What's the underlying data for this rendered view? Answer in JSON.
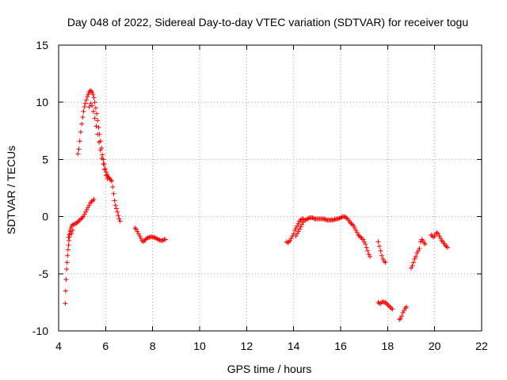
{
  "chart_data": {
    "type": "scatter",
    "title": "Day 048 of 2022, Sidereal Day-to-day VTEC variation (SDTVAR) for receiver togu",
    "xlabel": "GPS time / hours",
    "ylabel": "SDTVAR / TECUs",
    "xlim": [
      4,
      22
    ],
    "ylim": [
      -10,
      15
    ],
    "xticks": [
      4,
      6,
      8,
      10,
      12,
      14,
      16,
      18,
      20,
      22
    ],
    "yticks": [
      -10,
      -5,
      0,
      5,
      10,
      15
    ],
    "xtick_labels": [
      "4",
      "6",
      "8",
      "10",
      "12",
      "14",
      "16",
      "18",
      "20",
      "22"
    ],
    "ytick_labels": [
      "-10",
      "-5",
      "0",
      "5",
      "10",
      "15"
    ],
    "grid": true,
    "marker": "+",
    "color": "#ff0000",
    "series": [
      {
        "name": "SDTVAR",
        "segments": [
          [
            [
              4.28,
              -7.6
            ],
            [
              4.3,
              -6.5
            ],
            [
              4.32,
              -5.5
            ],
            [
              4.34,
              -4.6
            ],
            [
              4.36,
              -4.0
            ],
            [
              4.38,
              -3.4
            ],
            [
              4.4,
              -2.9
            ],
            [
              4.42,
              -2.5
            ],
            [
              4.44,
              -2.1
            ],
            [
              4.46,
              -1.8
            ],
            [
              4.48,
              -1.5
            ],
            [
              4.5,
              -1.2
            ],
            [
              4.52,
              -1.0
            ],
            [
              4.56,
              -0.8
            ],
            [
              4.6,
              -0.7
            ],
            [
              4.65,
              -0.7
            ],
            [
              4.7,
              -0.6
            ],
            [
              4.75,
              -0.6
            ],
            [
              4.8,
              -0.5
            ],
            [
              4.85,
              -0.4
            ],
            [
              4.9,
              -0.3
            ],
            [
              4.95,
              -0.2
            ],
            [
              5.0,
              -0.1
            ],
            [
              5.05,
              0.0
            ],
            [
              5.1,
              0.2
            ],
            [
              5.15,
              0.4
            ],
            [
              5.2,
              0.6
            ],
            [
              5.25,
              0.8
            ],
            [
              5.3,
              1.0
            ],
            [
              5.35,
              1.2
            ],
            [
              5.4,
              1.3
            ],
            [
              5.45,
              1.4
            ],
            [
              5.5,
              1.5
            ]
          ],
          [
            [
              4.42,
              -1.8
            ],
            [
              4.46,
              -1.6
            ],
            [
              4.5,
              -1.3
            ],
            [
              4.55,
              -1.5
            ],
            [
              4.6,
              -1.2
            ]
          ],
          [
            [
              4.82,
              5.5
            ],
            [
              4.86,
              5.9
            ],
            [
              4.9,
              6.6
            ],
            [
              4.94,
              7.4
            ],
            [
              4.98,
              8.1
            ],
            [
              5.02,
              8.7
            ],
            [
              5.06,
              9.2
            ],
            [
              5.1,
              9.6
            ],
            [
              5.14,
              9.9
            ],
            [
              5.18,
              10.2
            ],
            [
              5.22,
              10.5
            ],
            [
              5.26,
              10.7
            ],
            [
              5.3,
              10.9
            ],
            [
              5.34,
              11.0
            ],
            [
              5.38,
              11.0
            ],
            [
              5.42,
              10.9
            ],
            [
              5.46,
              10.7
            ],
            [
              5.5,
              10.4
            ],
            [
              5.54,
              10.0
            ],
            [
              5.58,
              9.5
            ],
            [
              5.62,
              9.0
            ],
            [
              5.66,
              8.4
            ],
            [
              5.7,
              7.8
            ],
            [
              5.74,
              7.2
            ],
            [
              5.78,
              6.6
            ],
            [
              5.82,
              6.0
            ],
            [
              5.86,
              5.4
            ],
            [
              5.9,
              5.0
            ],
            [
              5.94,
              4.6
            ],
            [
              5.98,
              4.2
            ],
            [
              6.02,
              3.9
            ],
            [
              6.06,
              3.7
            ],
            [
              6.1,
              3.5
            ],
            [
              6.14,
              3.4
            ],
            [
              6.18,
              3.3
            ],
            [
              6.22,
              3.2
            ],
            [
              6.26,
              3.1
            ]
          ],
          [
            [
              5.3,
              9.6
            ],
            [
              5.36,
              9.9
            ],
            [
              5.42,
              9.7
            ],
            [
              5.48,
              9.2
            ],
            [
              5.54,
              8.6
            ],
            [
              5.6,
              7.9
            ],
            [
              5.66,
              7.2
            ],
            [
              5.72,
              6.5
            ],
            [
              5.78,
              5.8
            ],
            [
              5.84,
              5.1
            ],
            [
              5.9,
              4.6
            ],
            [
              5.96,
              4.1
            ],
            [
              6.02,
              3.6
            ],
            [
              6.08,
              3.3
            ]
          ],
          [
            [
              6.3,
              2.6
            ],
            [
              6.34,
              2.0
            ],
            [
              6.38,
              1.4
            ],
            [
              6.42,
              1.0
            ],
            [
              6.46,
              0.7
            ],
            [
              6.5,
              0.4
            ],
            [
              6.54,
              0.1
            ],
            [
              6.58,
              -0.2
            ],
            [
              6.62,
              -0.4
            ]
          ],
          [
            [
              7.25,
              -1.0
            ],
            [
              7.3,
              -1.1
            ],
            [
              7.35,
              -1.3
            ],
            [
              7.4,
              -1.5
            ],
            [
              7.45,
              -1.7
            ],
            [
              7.5,
              -1.9
            ],
            [
              7.55,
              -2.1
            ],
            [
              7.6,
              -2.2
            ],
            [
              7.65,
              -2.1
            ],
            [
              7.7,
              -2.0
            ],
            [
              7.75,
              -1.9
            ],
            [
              7.8,
              -1.85
            ],
            [
              7.85,
              -1.8
            ],
            [
              7.9,
              -1.8
            ],
            [
              7.95,
              -1.75
            ],
            [
              8.0,
              -1.8
            ],
            [
              8.05,
              -1.8
            ],
            [
              8.1,
              -1.85
            ],
            [
              8.15,
              -1.9
            ],
            [
              8.2,
              -1.95
            ],
            [
              8.25,
              -2.0
            ],
            [
              8.3,
              -2.05
            ],
            [
              8.35,
              -2.1
            ],
            [
              8.4,
              -2.1
            ],
            [
              8.45,
              -2.05
            ],
            [
              8.5,
              -2.0
            ],
            [
              8.55,
              -2.0
            ]
          ],
          [
            [
              13.7,
              -2.2
            ],
            [
              13.75,
              -2.3
            ],
            [
              13.8,
              -2.2
            ],
            [
              13.85,
              -2.1
            ],
            [
              13.9,
              -1.9
            ],
            [
              13.95,
              -1.7
            ],
            [
              14.0,
              -1.5
            ],
            [
              14.05,
              -1.2
            ],
            [
              14.1,
              -1.0
            ],
            [
              14.15,
              -0.8
            ],
            [
              14.2,
              -0.6
            ],
            [
              14.25,
              -0.4
            ],
            [
              14.3,
              -0.3
            ],
            [
              14.35,
              -0.2
            ],
            [
              14.4,
              -0.2
            ],
            [
              14.45,
              -0.3
            ],
            [
              14.5,
              -0.3
            ],
            [
              14.55,
              -0.25
            ],
            [
              14.6,
              -0.2
            ],
            [
              14.65,
              -0.15
            ],
            [
              14.7,
              -0.1
            ],
            [
              14.75,
              -0.1
            ],
            [
              14.8,
              -0.1
            ],
            [
              14.85,
              -0.15
            ],
            [
              14.9,
              -0.2
            ],
            [
              14.95,
              -0.2
            ],
            [
              15.0,
              -0.2
            ],
            [
              15.05,
              -0.2
            ],
            [
              15.1,
              -0.2
            ],
            [
              15.15,
              -0.2
            ],
            [
              15.2,
              -0.2
            ],
            [
              15.25,
              -0.2
            ],
            [
              15.3,
              -0.2
            ],
            [
              15.35,
              -0.25
            ],
            [
              15.4,
              -0.3
            ],
            [
              15.45,
              -0.3
            ],
            [
              15.5,
              -0.3
            ],
            [
              15.55,
              -0.3
            ],
            [
              15.6,
              -0.3
            ],
            [
              15.65,
              -0.3
            ],
            [
              15.7,
              -0.3
            ],
            [
              15.75,
              -0.25
            ],
            [
              15.8,
              -0.2
            ],
            [
              15.85,
              -0.2
            ],
            [
              15.9,
              -0.2
            ],
            [
              15.95,
              -0.15
            ],
            [
              16.0,
              -0.1
            ],
            [
              16.05,
              -0.05
            ],
            [
              16.1,
              0.0
            ],
            [
              16.15,
              0.0
            ],
            [
              16.2,
              -0.05
            ],
            [
              16.25,
              -0.1
            ],
            [
              16.3,
              -0.2
            ],
            [
              16.35,
              -0.35
            ],
            [
              16.4,
              -0.5
            ],
            [
              16.45,
              -0.6
            ],
            [
              16.5,
              -0.7
            ],
            [
              16.55,
              -0.8
            ],
            [
              16.6,
              -1.0
            ],
            [
              16.65,
              -1.2
            ],
            [
              16.7,
              -1.4
            ],
            [
              16.75,
              -1.6
            ],
            [
              16.8,
              -1.7
            ],
            [
              16.85,
              -1.8
            ],
            [
              16.9,
              -1.9
            ],
            [
              16.95,
              -2.0
            ],
            [
              17.0,
              -2.2
            ],
            [
              17.05,
              -2.4
            ],
            [
              17.1,
              -2.7
            ],
            [
              17.15,
              -3.0
            ],
            [
              17.2,
              -3.3
            ],
            [
              17.25,
              -3.5
            ]
          ],
          [
            [
              14.1,
              -1.7
            ],
            [
              14.15,
              -1.5
            ],
            [
              14.2,
              -1.3
            ],
            [
              14.25,
              -1.1
            ],
            [
              14.3,
              -0.9
            ],
            [
              14.35,
              -0.7
            ],
            [
              14.4,
              -0.5
            ]
          ],
          [
            [
              17.6,
              -2.2
            ],
            [
              17.65,
              -2.6
            ],
            [
              17.7,
              -3.0
            ],
            [
              17.75,
              -3.4
            ],
            [
              17.8,
              -3.7
            ],
            [
              17.85,
              -3.9
            ],
            [
              17.9,
              -4.0
            ]
          ],
          [
            [
              17.6,
              -7.5
            ],
            [
              17.65,
              -7.6
            ],
            [
              17.7,
              -7.6
            ],
            [
              17.75,
              -7.5
            ],
            [
              17.8,
              -7.45
            ],
            [
              17.85,
              -7.5
            ],
            [
              17.9,
              -7.5
            ],
            [
              17.95,
              -7.6
            ],
            [
              18.0,
              -7.7
            ],
            [
              18.05,
              -7.8
            ],
            [
              18.1,
              -7.9
            ],
            [
              18.15,
              -8.0
            ],
            [
              18.2,
              -8.1
            ]
          ],
          [
            [
              18.5,
              -9.0
            ],
            [
              18.55,
              -8.9
            ],
            [
              18.6,
              -8.7
            ],
            [
              18.65,
              -8.4
            ],
            [
              18.7,
              -8.2
            ],
            [
              18.75,
              -8.0
            ],
            [
              18.8,
              -7.9
            ]
          ],
          [
            [
              19.0,
              -4.5
            ],
            [
              19.05,
              -4.3
            ],
            [
              19.1,
              -4.0
            ],
            [
              19.15,
              -3.7
            ],
            [
              19.2,
              -3.5
            ],
            [
              19.25,
              -3.2
            ],
            [
              19.3,
              -3.0
            ],
            [
              19.35,
              -2.8
            ],
            [
              19.4,
              -2.2
            ],
            [
              19.45,
              -2.0
            ],
            [
              19.5,
              -2.1
            ],
            [
              19.55,
              -2.3
            ],
            [
              19.6,
              -2.4
            ]
          ],
          [
            [
              19.85,
              -1.6
            ],
            [
              19.9,
              -1.7
            ],
            [
              19.95,
              -1.8
            ],
            [
              20.0,
              -1.7
            ],
            [
              20.05,
              -1.5
            ],
            [
              20.1,
              -1.4
            ],
            [
              20.15,
              -1.5
            ],
            [
              20.2,
              -1.7
            ],
            [
              20.25,
              -1.9
            ],
            [
              20.3,
              -2.1
            ],
            [
              20.35,
              -2.2
            ],
            [
              20.4,
              -2.35
            ],
            [
              20.45,
              -2.5
            ],
            [
              20.5,
              -2.6
            ],
            [
              20.55,
              -2.7
            ]
          ]
        ]
      }
    ]
  }
}
